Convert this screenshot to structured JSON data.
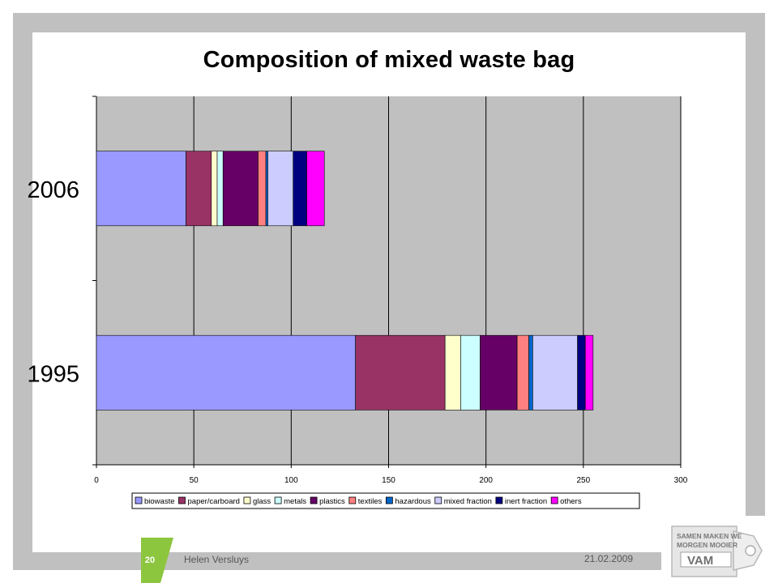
{
  "footer": {
    "page_number": "20",
    "author": "Helen Versluys",
    "date": "21.02.2009"
  },
  "logo": {
    "line1": "SAMEN MAKEN WE",
    "line2": "MORGEN MOOIER",
    "brand": "VAM"
  },
  "chart_data": {
    "type": "bar",
    "orientation": "horizontal",
    "stacked": true,
    "title": "Composition of mixed waste bag",
    "xlabel": "",
    "ylabel": "",
    "categories": [
      "1995",
      "2006"
    ],
    "xlim": [
      0,
      300
    ],
    "xticks": [
      0,
      50,
      100,
      150,
      200,
      250,
      300
    ],
    "grid": true,
    "legend_position": "bottom",
    "series": [
      {
        "name": "biowaste",
        "color": "#9999ff",
        "values": [
          133,
          46
        ]
      },
      {
        "name": "paper/carboard",
        "color": "#993366",
        "values": [
          46,
          13
        ]
      },
      {
        "name": "glass",
        "color": "#ffffcc",
        "values": [
          8,
          3
        ]
      },
      {
        "name": "metals",
        "color": "#ccffff",
        "values": [
          10,
          3
        ]
      },
      {
        "name": "plastics",
        "color": "#660066",
        "values": [
          19,
          18
        ]
      },
      {
        "name": "textiles",
        "color": "#ff8080",
        "values": [
          6,
          4
        ]
      },
      {
        "name": "hazardous",
        "color": "#0066cc",
        "values": [
          2,
          1
        ]
      },
      {
        "name": "mixed fraction",
        "color": "#ccccff",
        "values": [
          23,
          13
        ]
      },
      {
        "name": "inert fraction",
        "color": "#000080",
        "values": [
          4,
          7
        ]
      },
      {
        "name": "others",
        "color": "#ff00ff",
        "values": [
          4,
          9
        ]
      }
    ]
  }
}
